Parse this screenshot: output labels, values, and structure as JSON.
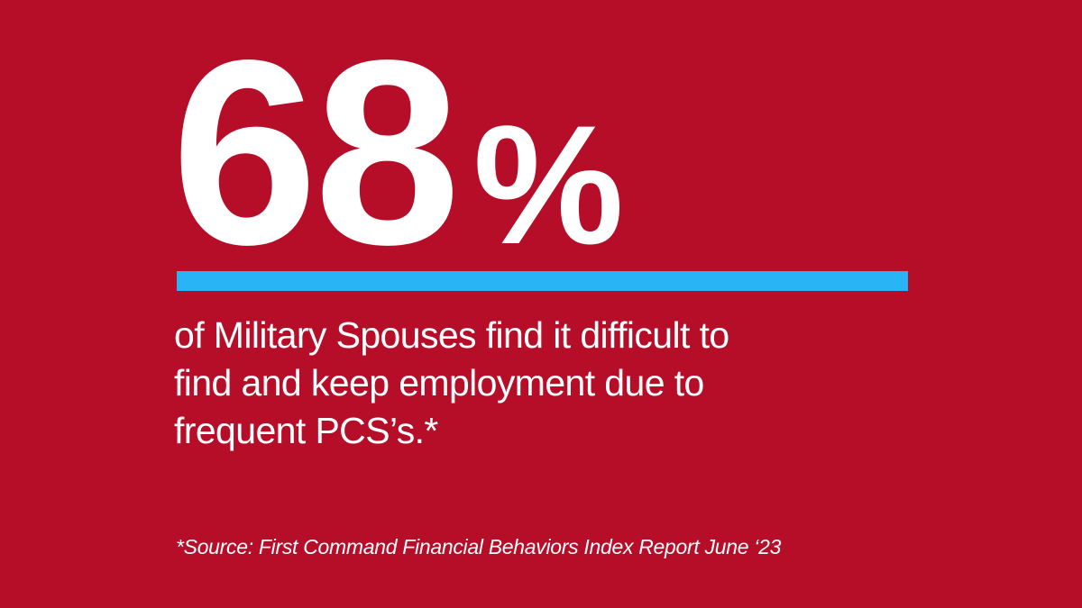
{
  "card": {
    "stat_value": "68",
    "stat_unit": "%",
    "description_lines": [
      "of Military Spouses find it difficult to",
      "find and keep employment due to",
      "frequent PCS’s.*"
    ],
    "source_note": "*Source: First Command Financial Behaviors Index Report June ‘23"
  },
  "colors": {
    "background": "#B60D29",
    "accent_bar": "#29B4F6",
    "text": "#FFFFFF"
  }
}
